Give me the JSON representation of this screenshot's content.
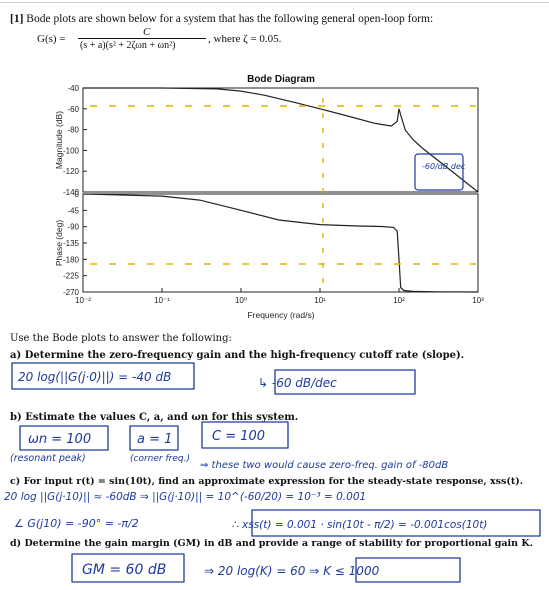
{
  "problem": {
    "number": "[1]",
    "intro": "Bode plots are shown below for a system that has the following general open-loop form:",
    "tf_lhs": "G(s) =",
    "tf_num": "C",
    "tf_den": "(s + a)(s² + 2ζωn + ωn²)",
    "zeta_note": ", where ζ = 0.05.",
    "instruction": "Use the Bode plots to answer the following:",
    "qa": "a) Determine the zero-frequency gain and the high-frequency cutoff rate (slope).",
    "qb": "b) Estimate the values C, a, and ωn for this system.",
    "qc": "c) For input r(t) = sin(10t), find an approximate expression for the steady-state response, xss(t).",
    "qd": "d) Determine the gain margin (GM) in dB and provide a range of stability for proportional gain K."
  },
  "chart_data": [
    {
      "type": "line",
      "title": "Bode Diagram",
      "ylabel": "Magnitude (dB)",
      "ylim": [
        -140,
        -40
      ],
      "yticks": [
        "-40",
        "-60",
        "-80",
        "-100",
        "-120",
        "-140"
      ],
      "xscale": "log",
      "xlim": [
        0.01,
        1000
      ],
      "series": [
        {
          "x": [
            0.01,
            0.1,
            0.5,
            1,
            2,
            5,
            10,
            20,
            50,
            80,
            95,
            100,
            105,
            120,
            150,
            200,
            500,
            1000
          ],
          "values": [
            -40.0,
            -40.0,
            -40.9,
            -43.0,
            -47.0,
            -54.2,
            -60.0,
            -66.0,
            -74.0,
            -76.5,
            -72.0,
            -60.0,
            -66.0,
            -80.5,
            -89.5,
            -98.2,
            -121.8,
            -140.0
          ]
        }
      ]
    },
    {
      "type": "line",
      "ylabel": "Phase (deg)",
      "xlabel": "Frequency  (rad/s)",
      "ylim": [
        -270,
        0
      ],
      "yticks": [
        "0",
        "-45",
        "-90",
        "-135",
        "-180",
        "-225",
        "-270"
      ],
      "xscale": "log",
      "xlim": [
        0.01,
        1000
      ],
      "xticks": [
        "10⁻²",
        "10⁻¹",
        "10⁰",
        "10¹",
        "10²",
        "10³"
      ],
      "series": [
        {
          "x": [
            0.01,
            0.1,
            0.3,
            1,
            3,
            10,
            30,
            60,
            85,
            95,
            100,
            105,
            115,
            150,
            300,
            1000
          ],
          "values": [
            0,
            -5.7,
            -16.7,
            -45.0,
            -71.6,
            -84.3,
            -88.2,
            -89.5,
            -92.0,
            -102.0,
            -180.0,
            -258.0,
            -266.0,
            -268.0,
            -269.5,
            -270.0
          ]
        }
      ]
    }
  ],
  "handwriting": {
    "a_gain": "20 log(||G(j·0)||) = -40 dB",
    "a_slope": "↳ -60 dB/dec",
    "b_wn": "ωn = 100",
    "b_wn_note": "(resonant peak)",
    "b_a": "a = 1",
    "b_a_note": "(corner freq.)",
    "b_c": "C = 100",
    "b_arrow": "⇒ these two would cause zero-freq. gain of -80dB",
    "c_line1": "20 log ||G(j·10)|| ≈ -60dB ⇒ ||G(j·10)|| = 10^(-60/20) = 10⁻³ = 0.001",
    "c_line2": "∠ G(j10) = -90° = -π/2",
    "c_result": "∴ xss(t) = 0.001 · sin(10t - π/2) = -0.001cos(10t)",
    "d_gm": "GM = 60 dB",
    "d_k": "⇒ 20 log(K) = 60 ⇒ K ≤ 1000",
    "slope_annot": "-60/dB dec"
  }
}
